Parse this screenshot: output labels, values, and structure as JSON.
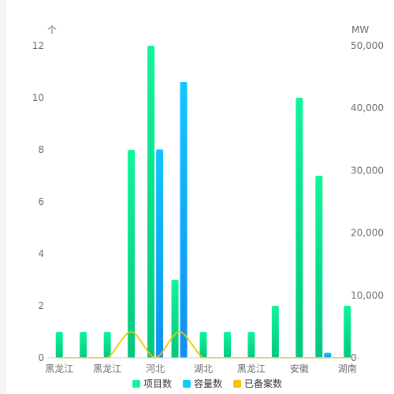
{
  "chart_data": {
    "type": "bar",
    "left_axis_unit": "个",
    "right_axis_unit": "MW",
    "left_ylim": [
      0,
      12
    ],
    "left_ticks": [
      0,
      2,
      4,
      6,
      8,
      10,
      12
    ],
    "right_ylim": [
      0,
      50000
    ],
    "right_ticks": [
      "0",
      "10,000",
      "20,000",
      "30,000",
      "40,000",
      "50,000"
    ],
    "right_tick_values": [
      0,
      10000,
      20000,
      30000,
      40000,
      50000
    ],
    "x_tick_labels": [
      "黑龙江",
      "黑龙江",
      "河北",
      "湖北",
      "黑龙江",
      "安徽",
      "湖南"
    ],
    "x_tick_indices": [
      0,
      2,
      4,
      6,
      8,
      10,
      12
    ],
    "category_count": 13,
    "grid": false,
    "legend_position": "bottom",
    "series": [
      {
        "name": "项目数",
        "kind": "bar",
        "axis": "left",
        "color_top": "#10f59a",
        "color_bottom": "#03c77e",
        "values": [
          1,
          1,
          1,
          8,
          12,
          3,
          1,
          1,
          1,
          2,
          10,
          7,
          2
        ]
      },
      {
        "name": "容量数",
        "kind": "bar",
        "axis": "right",
        "color_top": "#12c6ff",
        "color_bottom": "#0f8ff0",
        "values": [
          0,
          0,
          0,
          0,
          33400,
          44200,
          0,
          0,
          0,
          0,
          0,
          800,
          0
        ]
      },
      {
        "name": "已备案数",
        "kind": "line",
        "axis": "left",
        "color": "#f5c400",
        "values": [
          0,
          0,
          0,
          1,
          0,
          1,
          0,
          0,
          0,
          0,
          0,
          0,
          0
        ]
      }
    ]
  }
}
